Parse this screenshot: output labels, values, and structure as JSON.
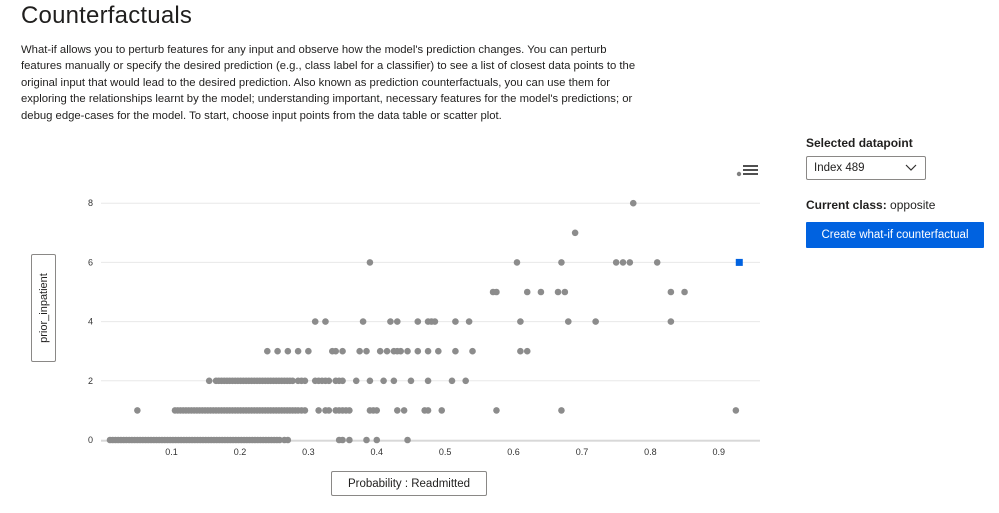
{
  "page": {
    "title": "Counterfactuals",
    "description": "What-if allows you to perturb features for any input and observe how the model's prediction changes. You can perturb features manually or specify the desired prediction (e.g., class label for a classifier) to see a list of closest data points to the original input that would lead to the desired prediction. Also known as prediction counterfactuals, you can use them for exploring the relationships learnt by the model; understanding important, necessary features for the model's predictions; or debug edge-cases for the model. To start, choose input points from the data table or scatter plot."
  },
  "chart": {
    "y_axis_button_label": "prior_inpatient",
    "x_axis_button_label": "Probability : Readmitted",
    "menu_icon": "hamburger-menu-icon"
  },
  "side_panel": {
    "selected_label": "Selected datapoint",
    "dropdown_value": "Index 489",
    "current_class_label": "Current class:",
    "current_class_value": "opposite",
    "create_button_label": "Create what-if counterfactual"
  },
  "colors": {
    "point": "#8c8c8c",
    "selected_point": "#0062e0",
    "accent": "#0062e0",
    "grid": "#e8e8e8"
  },
  "chart_data": {
    "type": "scatter",
    "xlim": [
      0,
      0.96
    ],
    "ylim": [
      0,
      8
    ],
    "x_ticks": [
      "0.1",
      "0.2",
      "0.3",
      "0.4",
      "0.5",
      "0.6",
      "0.7",
      "0.8",
      "0.9"
    ],
    "x_tick_values": [
      0.1,
      0.2,
      0.3,
      0.4,
      0.5,
      0.6,
      0.7,
      0.8,
      0.9
    ],
    "y_ticks": [
      "0",
      "2",
      "4",
      "6",
      "8"
    ],
    "y_tick_values": [
      0,
      2,
      4,
      6,
      8
    ],
    "grid": "horizontal",
    "selected_point": {
      "x": 0.93,
      "y": 6
    },
    "dense_ranges": [
      {
        "y": 0,
        "x_start": 0.01,
        "x_end": 0.26
      },
      {
        "y": 1,
        "x_start": 0.105,
        "x_end": 0.285
      },
      {
        "y": 2,
        "x_start": 0.165,
        "x_end": 0.28
      }
    ],
    "points": [
      [
        0.265,
        0
      ],
      [
        0.27,
        0
      ],
      [
        0.345,
        0
      ],
      [
        0.35,
        0
      ],
      [
        0.36,
        0
      ],
      [
        0.385,
        0
      ],
      [
        0.4,
        0
      ],
      [
        0.445,
        0
      ],
      [
        0.05,
        1
      ],
      [
        0.29,
        1
      ],
      [
        0.295,
        1
      ],
      [
        0.315,
        1
      ],
      [
        0.325,
        1
      ],
      [
        0.33,
        1
      ],
      [
        0.34,
        1
      ],
      [
        0.345,
        1
      ],
      [
        0.35,
        1
      ],
      [
        0.355,
        1
      ],
      [
        0.36,
        1
      ],
      [
        0.39,
        1
      ],
      [
        0.395,
        1
      ],
      [
        0.4,
        1
      ],
      [
        0.43,
        1
      ],
      [
        0.44,
        1
      ],
      [
        0.47,
        1
      ],
      [
        0.475,
        1
      ],
      [
        0.495,
        1
      ],
      [
        0.575,
        1
      ],
      [
        0.67,
        1
      ],
      [
        0.925,
        1
      ],
      [
        0.155,
        2
      ],
      [
        0.285,
        2
      ],
      [
        0.29,
        2
      ],
      [
        0.295,
        2
      ],
      [
        0.31,
        2
      ],
      [
        0.315,
        2
      ],
      [
        0.32,
        2
      ],
      [
        0.325,
        2
      ],
      [
        0.33,
        2
      ],
      [
        0.34,
        2
      ],
      [
        0.345,
        2
      ],
      [
        0.35,
        2
      ],
      [
        0.37,
        2
      ],
      [
        0.39,
        2
      ],
      [
        0.41,
        2
      ],
      [
        0.425,
        2
      ],
      [
        0.45,
        2
      ],
      [
        0.475,
        2
      ],
      [
        0.51,
        2
      ],
      [
        0.53,
        2
      ],
      [
        0.24,
        3
      ],
      [
        0.255,
        3
      ],
      [
        0.27,
        3
      ],
      [
        0.285,
        3
      ],
      [
        0.3,
        3
      ],
      [
        0.335,
        3
      ],
      [
        0.34,
        3
      ],
      [
        0.35,
        3
      ],
      [
        0.375,
        3
      ],
      [
        0.385,
        3
      ],
      [
        0.405,
        3
      ],
      [
        0.415,
        3
      ],
      [
        0.425,
        3
      ],
      [
        0.43,
        3
      ],
      [
        0.435,
        3
      ],
      [
        0.445,
        3
      ],
      [
        0.46,
        3
      ],
      [
        0.475,
        3
      ],
      [
        0.49,
        3
      ],
      [
        0.515,
        3
      ],
      [
        0.54,
        3
      ],
      [
        0.61,
        3
      ],
      [
        0.62,
        3
      ],
      [
        0.31,
        4
      ],
      [
        0.325,
        4
      ],
      [
        0.38,
        4
      ],
      [
        0.42,
        4
      ],
      [
        0.43,
        4
      ],
      [
        0.46,
        4
      ],
      [
        0.475,
        4
      ],
      [
        0.48,
        4
      ],
      [
        0.485,
        4
      ],
      [
        0.515,
        4
      ],
      [
        0.535,
        4
      ],
      [
        0.61,
        4
      ],
      [
        0.68,
        4
      ],
      [
        0.72,
        4
      ],
      [
        0.83,
        4
      ],
      [
        0.57,
        5
      ],
      [
        0.575,
        5
      ],
      [
        0.62,
        5
      ],
      [
        0.64,
        5
      ],
      [
        0.665,
        5
      ],
      [
        0.675,
        5
      ],
      [
        0.83,
        5
      ],
      [
        0.85,
        5
      ],
      [
        0.39,
        6
      ],
      [
        0.605,
        6
      ],
      [
        0.67,
        6
      ],
      [
        0.75,
        6
      ],
      [
        0.76,
        6
      ],
      [
        0.77,
        6
      ],
      [
        0.81,
        6
      ],
      [
        0.69,
        7
      ],
      [
        0.775,
        8
      ]
    ]
  }
}
